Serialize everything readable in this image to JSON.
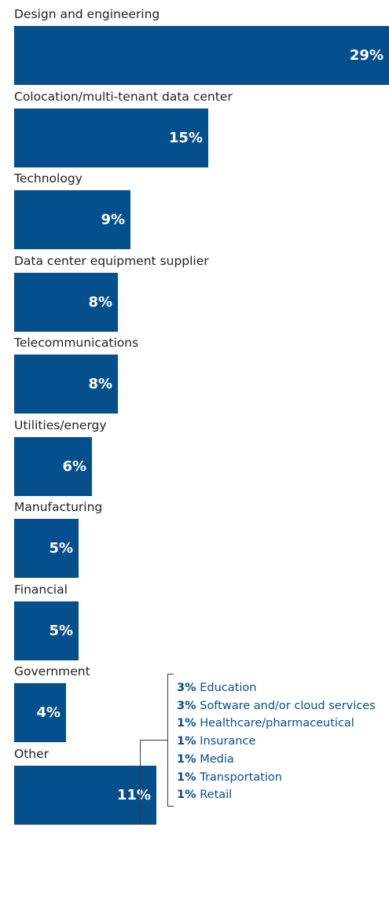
{
  "chart_data": {
    "type": "bar",
    "orientation": "horizontal",
    "categories": [
      "Design and engineering",
      "Colocation/multi-tenant data center",
      "Technology",
      "Data center equipment supplier",
      "Telecommunications",
      "Utilities/energy",
      "Manufacturing",
      "Financial",
      "Government",
      "Other"
    ],
    "values": [
      29,
      15,
      9,
      8,
      8,
      6,
      5,
      5,
      4,
      11
    ],
    "value_labels": [
      "29%",
      "15%",
      "9%",
      "8%",
      "8%",
      "6%",
      "5%",
      "5%",
      "4%",
      "11%"
    ],
    "unit": "%",
    "bar_color": "#05508c",
    "other_breakdown": [
      {
        "pct": "3%",
        "label": "Education"
      },
      {
        "pct": "3%",
        "label": "Software and/or cloud services"
      },
      {
        "pct": "1%",
        "label": "Healthcare/pharmaceutical"
      },
      {
        "pct": "1%",
        "label": "Insurance"
      },
      {
        "pct": "1%",
        "label": "Media"
      },
      {
        "pct": "1%",
        "label": "Transportation"
      },
      {
        "pct": "1%",
        "label": "Retail"
      }
    ],
    "breakdown_color": "#05508c"
  }
}
